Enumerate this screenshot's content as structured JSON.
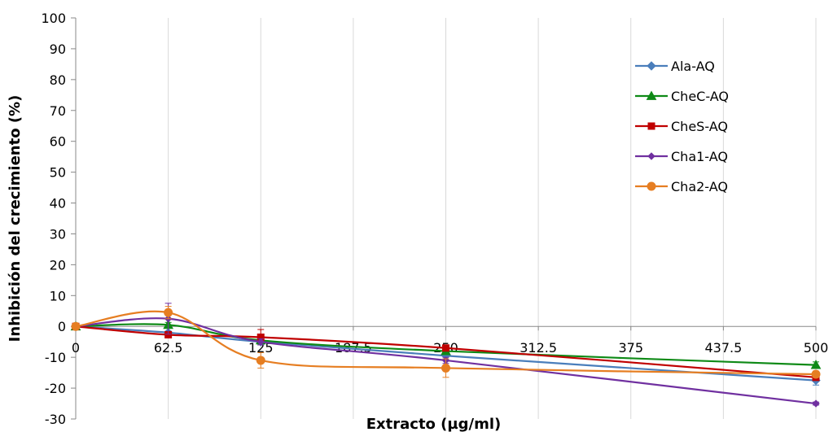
{
  "chart_data": {
    "type": "line",
    "xlabel": "Extracto  (µg/ml)",
    "ylabel": "Inhibición del crecimiento (%)",
    "xlim": [
      0,
      500
    ],
    "ylim": [
      -30,
      100
    ],
    "x_ticks": [
      "0",
      "62.5",
      "125",
      "187.5",
      "250",
      "312.5",
      "375",
      "437.5",
      "500"
    ],
    "x_tick_values": [
      0,
      62.5,
      125,
      187.5,
      250,
      312.5,
      375,
      437.5,
      500
    ],
    "y_ticks": [
      "100",
      "90",
      "80",
      "70",
      "60",
      "50",
      "40",
      "30",
      "20",
      "10",
      "0",
      "-10",
      "-20",
      "-30"
    ],
    "y_tick_values": [
      100,
      90,
      80,
      70,
      60,
      50,
      40,
      30,
      20,
      10,
      0,
      -10,
      -20,
      -30
    ],
    "grid": {
      "vertical": true,
      "horizontal": false
    },
    "legend_position": "right",
    "series": [
      {
        "name": "Ala-AQ",
        "color": "#4A7EBB",
        "marker": "diamond",
        "x": [
          0,
          62.5,
          125,
          250,
          500
        ],
        "y": [
          0,
          -2,
          -5,
          -9.5,
          -17.5
        ],
        "err": [
          0,
          0.5,
          0.8,
          1.0,
          1.5
        ]
      },
      {
        "name": "CheC-AQ",
        "color": "#0E8A16",
        "marker": "triangle",
        "x": [
          0,
          62.5,
          125,
          250,
          500
        ],
        "y": [
          0,
          0.5,
          -4.5,
          -8,
          -12.5
        ],
        "err": [
          0,
          0.8,
          0.8,
          1.0,
          1.0
        ]
      },
      {
        "name": "CheS-AQ",
        "color": "#C00000",
        "marker": "square",
        "x": [
          0,
          62.5,
          125,
          250,
          500
        ],
        "y": [
          0,
          -2.7,
          -3.5,
          -7,
          -16.5
        ],
        "err": [
          0,
          0.5,
          2.5,
          1.0,
          1.0
        ]
      },
      {
        "name": "Cha1-AQ",
        "color": "#7030A0",
        "marker": "diamond-small",
        "x": [
          0,
          62.5,
          125,
          250,
          500
        ],
        "y": [
          0,
          2.5,
          -5,
          -11,
          -25
        ],
        "err": [
          0,
          5.0,
          1.0,
          1.0,
          0.5
        ]
      },
      {
        "name": "Cha2-AQ",
        "color": "#E67E22",
        "marker": "circle",
        "x": [
          0,
          62.5,
          125,
          250,
          500
        ],
        "y": [
          0,
          4.5,
          -11,
          -13.5,
          -15.5
        ],
        "err": [
          0,
          2.0,
          2.5,
          3.0,
          1.0
        ]
      }
    ]
  }
}
